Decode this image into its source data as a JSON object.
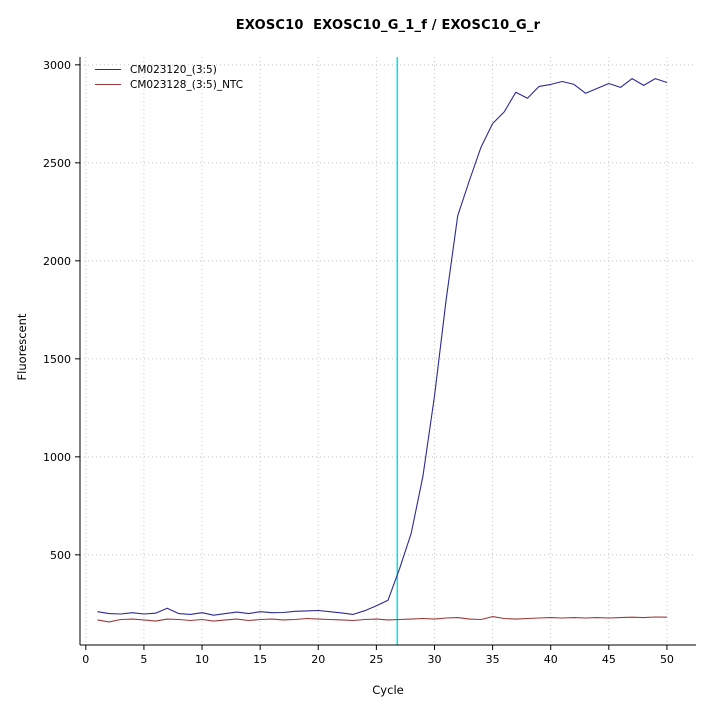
{
  "title": "EXOSC10  EXOSC10_G_1_f / EXOSC10_G_r",
  "chart_data": {
    "type": "line",
    "title": "EXOSC10  EXOSC10_G_1_f / EXOSC10_G_r",
    "xlabel": "Cycle",
    "ylabel": "Fluorescent",
    "xlim": [
      -0.5,
      52.5
    ],
    "ylim": [
      40,
      3040
    ],
    "xticks": [
      0,
      5,
      10,
      15,
      20,
      25,
      30,
      35,
      40,
      45,
      50
    ],
    "yticks": [
      500,
      1000,
      1500,
      2000,
      2500,
      3000
    ],
    "grid": "dotted",
    "grid_color": "#c4c4c4",
    "legend_position": "top-left",
    "threshold_line": {
      "x": 26.8,
      "color": "#00e5e5"
    },
    "x": [
      1,
      2,
      3,
      4,
      5,
      6,
      7,
      8,
      9,
      10,
      11,
      12,
      13,
      14,
      15,
      16,
      17,
      18,
      19,
      20,
      21,
      22,
      23,
      24,
      25,
      26,
      27,
      28,
      29,
      30,
      31,
      32,
      33,
      34,
      35,
      36,
      37,
      38,
      39,
      40,
      41,
      42,
      43,
      44,
      45,
      46,
      47,
      48,
      49,
      50
    ],
    "series": [
      {
        "name": "CM023120_(3:5)",
        "color": "#2b2b92",
        "values": [
          210,
          200,
          198,
          205,
          198,
          202,
          228,
          200,
          196,
          205,
          192,
          200,
          208,
          200,
          210,
          205,
          206,
          212,
          214,
          216,
          210,
          204,
          196,
          215,
          240,
          268,
          430,
          610,
          900,
          1310,
          1800,
          2230,
          2410,
          2580,
          2700,
          2760,
          2860,
          2830,
          2890,
          2900,
          2915,
          2900,
          2855,
          2880,
          2905,
          2885,
          2930,
          2895,
          2930,
          2910
        ]
      },
      {
        "name": "CM023128_(3:5)_NTC",
        "color": "#9a3a3a",
        "values": [
          168,
          158,
          170,
          172,
          168,
          162,
          172,
          170,
          165,
          170,
          162,
          168,
          172,
          165,
          170,
          172,
          168,
          170,
          175,
          172,
          170,
          168,
          165,
          170,
          172,
          168,
          170,
          172,
          175,
          172,
          178,
          180,
          172,
          170,
          185,
          175,
          172,
          175,
          178,
          180,
          178,
          180,
          178,
          180,
          178,
          180,
          182,
          180,
          183,
          182
        ]
      }
    ]
  }
}
